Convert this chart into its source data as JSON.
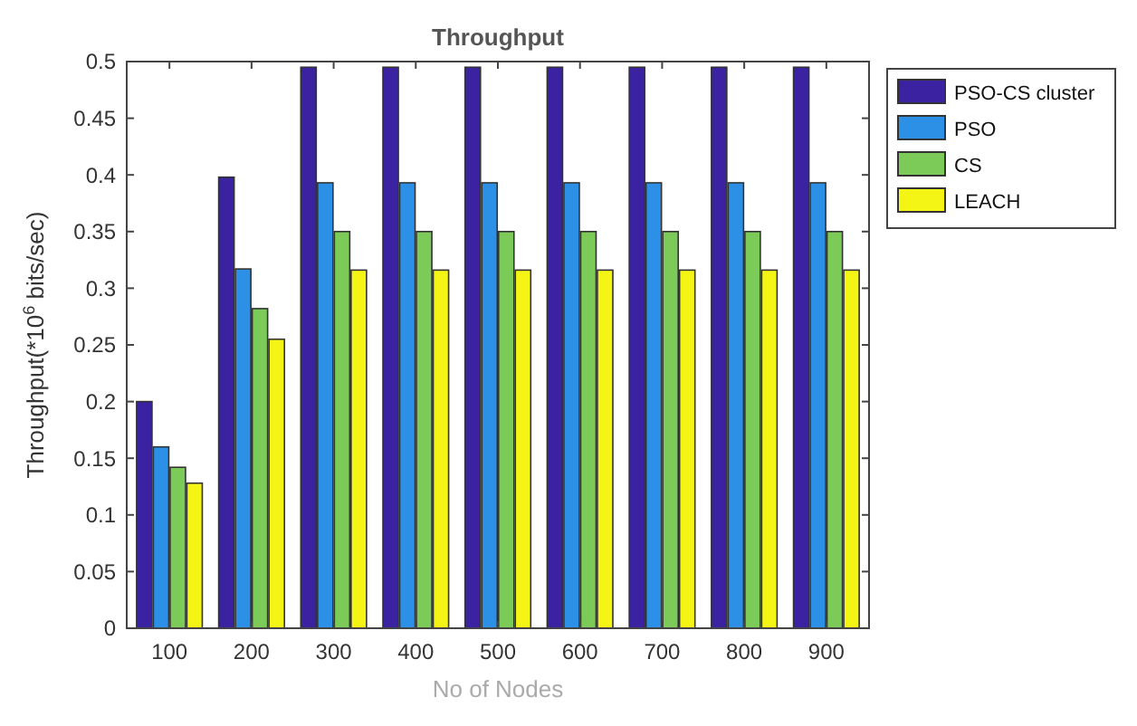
{
  "chart_data": {
    "type": "bar",
    "title": "Throughput",
    "xlabel": "No of Nodes",
    "ylabel": "Throughput(*10$^{6}$ bits/sec)",
    "categories": [
      "100",
      "200",
      "300",
      "400",
      "500",
      "600",
      "700",
      "800",
      "900"
    ],
    "series": [
      {
        "name": "PSO-CS cluster",
        "color": "#3a22a0",
        "values": [
          0.2,
          0.398,
          0.495,
          0.495,
          0.495,
          0.495,
          0.495,
          0.495,
          0.495
        ]
      },
      {
        "name": "PSO",
        "color": "#2b90e6",
        "values": [
          0.16,
          0.317,
          0.393,
          0.393,
          0.393,
          0.393,
          0.393,
          0.393,
          0.393
        ]
      },
      {
        "name": "CS",
        "color": "#7ccb58",
        "values": [
          0.142,
          0.282,
          0.35,
          0.35,
          0.35,
          0.35,
          0.35,
          0.35,
          0.35
        ]
      },
      {
        "name": "LEACH",
        "color": "#f5f515",
        "values": [
          0.128,
          0.255,
          0.316,
          0.316,
          0.316,
          0.316,
          0.316,
          0.316,
          0.316
        ]
      }
    ],
    "ylim": [
      0,
      0.5
    ],
    "yticks": [
      0,
      0.05,
      0.1,
      0.15,
      0.2,
      0.25,
      0.3,
      0.35,
      0.4,
      0.45,
      0.5
    ],
    "grid": false,
    "legend": "right"
  }
}
